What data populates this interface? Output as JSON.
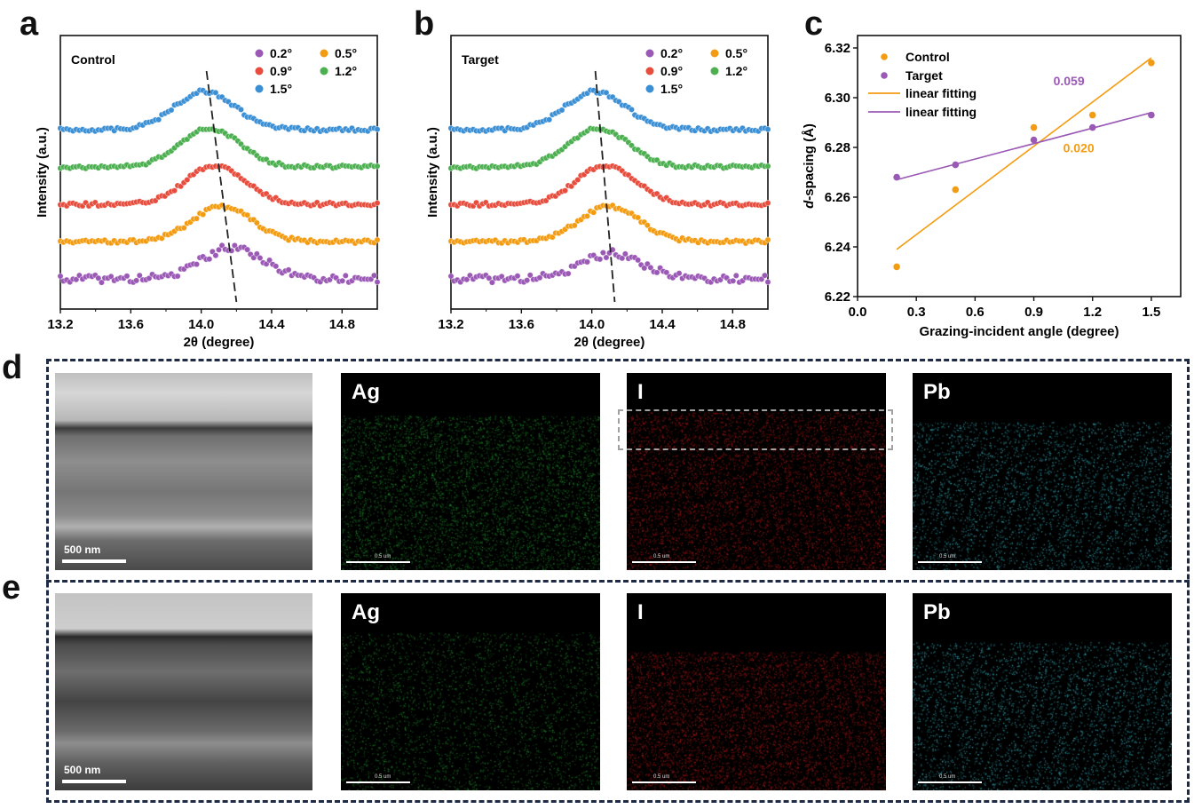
{
  "panels": {
    "a": "a",
    "b": "b",
    "c": "c",
    "d": "d",
    "e": "e"
  },
  "colors": {
    "0.2°": "#9b59b6",
    "0.5°": "#f39c12",
    "0.9°": "#e74c3c",
    "1.2°": "#4caf50",
    "1.5°": "#3b8fd4",
    "control": "#f39c12",
    "target": "#9b59b6",
    "frame": "#1f2a44",
    "ag": "#2ecc40",
    "i": "#e02020",
    "pb": "#40d0e0"
  },
  "chart_data": [
    {
      "type": "scatter",
      "panel": "a",
      "legend_title": "Control",
      "xlabel": "2θ (degree)",
      "ylabel": "Intensity (a.u.)",
      "xlim": [
        13.2,
        15.0
      ],
      "xticks": [
        "13.2",
        "13.6",
        "14.0",
        "14.4",
        "14.8"
      ],
      "series": [
        {
          "name": "0.2°",
          "offset": 0,
          "peak": 14.18,
          "height": 1.0
        },
        {
          "name": "0.5°",
          "offset": 1,
          "peak": 14.12,
          "height": 1.1
        },
        {
          "name": "0.9°",
          "offset": 2,
          "peak": 14.08,
          "height": 1.2
        },
        {
          "name": "1.2°",
          "offset": 3,
          "peak": 14.05,
          "height": 1.2
        },
        {
          "name": "1.5°",
          "offset": 4,
          "peak": 14.02,
          "height": 1.2
        }
      ],
      "guide_line": {
        "x_top": 14.03,
        "x_bottom": 14.2
      }
    },
    {
      "type": "scatter",
      "panel": "b",
      "legend_title": "Target",
      "xlabel": "2θ (degree)",
      "ylabel": "Intensity (a.u.)",
      "xlim": [
        13.2,
        15.0
      ],
      "xticks": [
        "13.2",
        "13.6",
        "14.0",
        "14.4",
        "14.8"
      ],
      "series": [
        {
          "name": "0.2°",
          "offset": 0,
          "peak": 14.12,
          "height": 0.8
        },
        {
          "name": "0.5°",
          "offset": 1,
          "peak": 14.1,
          "height": 1.1
        },
        {
          "name": "0.9°",
          "offset": 2,
          "peak": 14.08,
          "height": 1.2
        },
        {
          "name": "1.2°",
          "offset": 3,
          "peak": 14.04,
          "height": 1.2
        },
        {
          "name": "1.5°",
          "offset": 4,
          "peak": 14.02,
          "height": 1.2
        }
      ],
      "guide_line": {
        "x_top": 14.02,
        "x_bottom": 14.13
      }
    },
    {
      "type": "scatter",
      "panel": "c",
      "xlabel": "Grazing-incident angle (degree)",
      "ylabel_prefix": "d",
      "ylabel_suffix": "-spacing (Å)",
      "xlim": [
        0.0,
        1.65
      ],
      "ylim": [
        6.22,
        6.325
      ],
      "xticks": [
        "0.0",
        "0.3",
        "0.6",
        "0.9",
        "1.2",
        "1.5"
      ],
      "yticks": [
        "6.22",
        "6.24",
        "6.26",
        "6.28",
        "6.30",
        "6.32"
      ],
      "series": [
        {
          "name": "Control",
          "x": [
            0.2,
            0.5,
            0.9,
            1.2,
            1.5
          ],
          "y": [
            6.232,
            6.263,
            6.288,
            6.293,
            6.314
          ]
        },
        {
          "name": "Target",
          "x": [
            0.2,
            0.5,
            0.9,
            1.2,
            1.5
          ],
          "y": [
            6.268,
            6.273,
            6.283,
            6.288,
            6.293
          ]
        }
      ],
      "fits": [
        {
          "name": "linear fitting",
          "x": [
            0.2,
            1.5
          ],
          "y": [
            6.239,
            6.316
          ]
        },
        {
          "name": "linear fitting",
          "x": [
            0.2,
            1.5
          ],
          "y": [
            6.267,
            6.294
          ]
        }
      ],
      "annotations": [
        "0.059",
        "0.020"
      ]
    }
  ],
  "images": {
    "d": {
      "sem_scale": "500 nm",
      "maps": [
        "Ag",
        "I",
        "Pb"
      ],
      "map_scale": "0.5 um"
    },
    "e": {
      "sem_scale": "500 nm",
      "maps": [
        "Ag",
        "I",
        "Pb"
      ],
      "map_scale": "0.5 um"
    }
  }
}
